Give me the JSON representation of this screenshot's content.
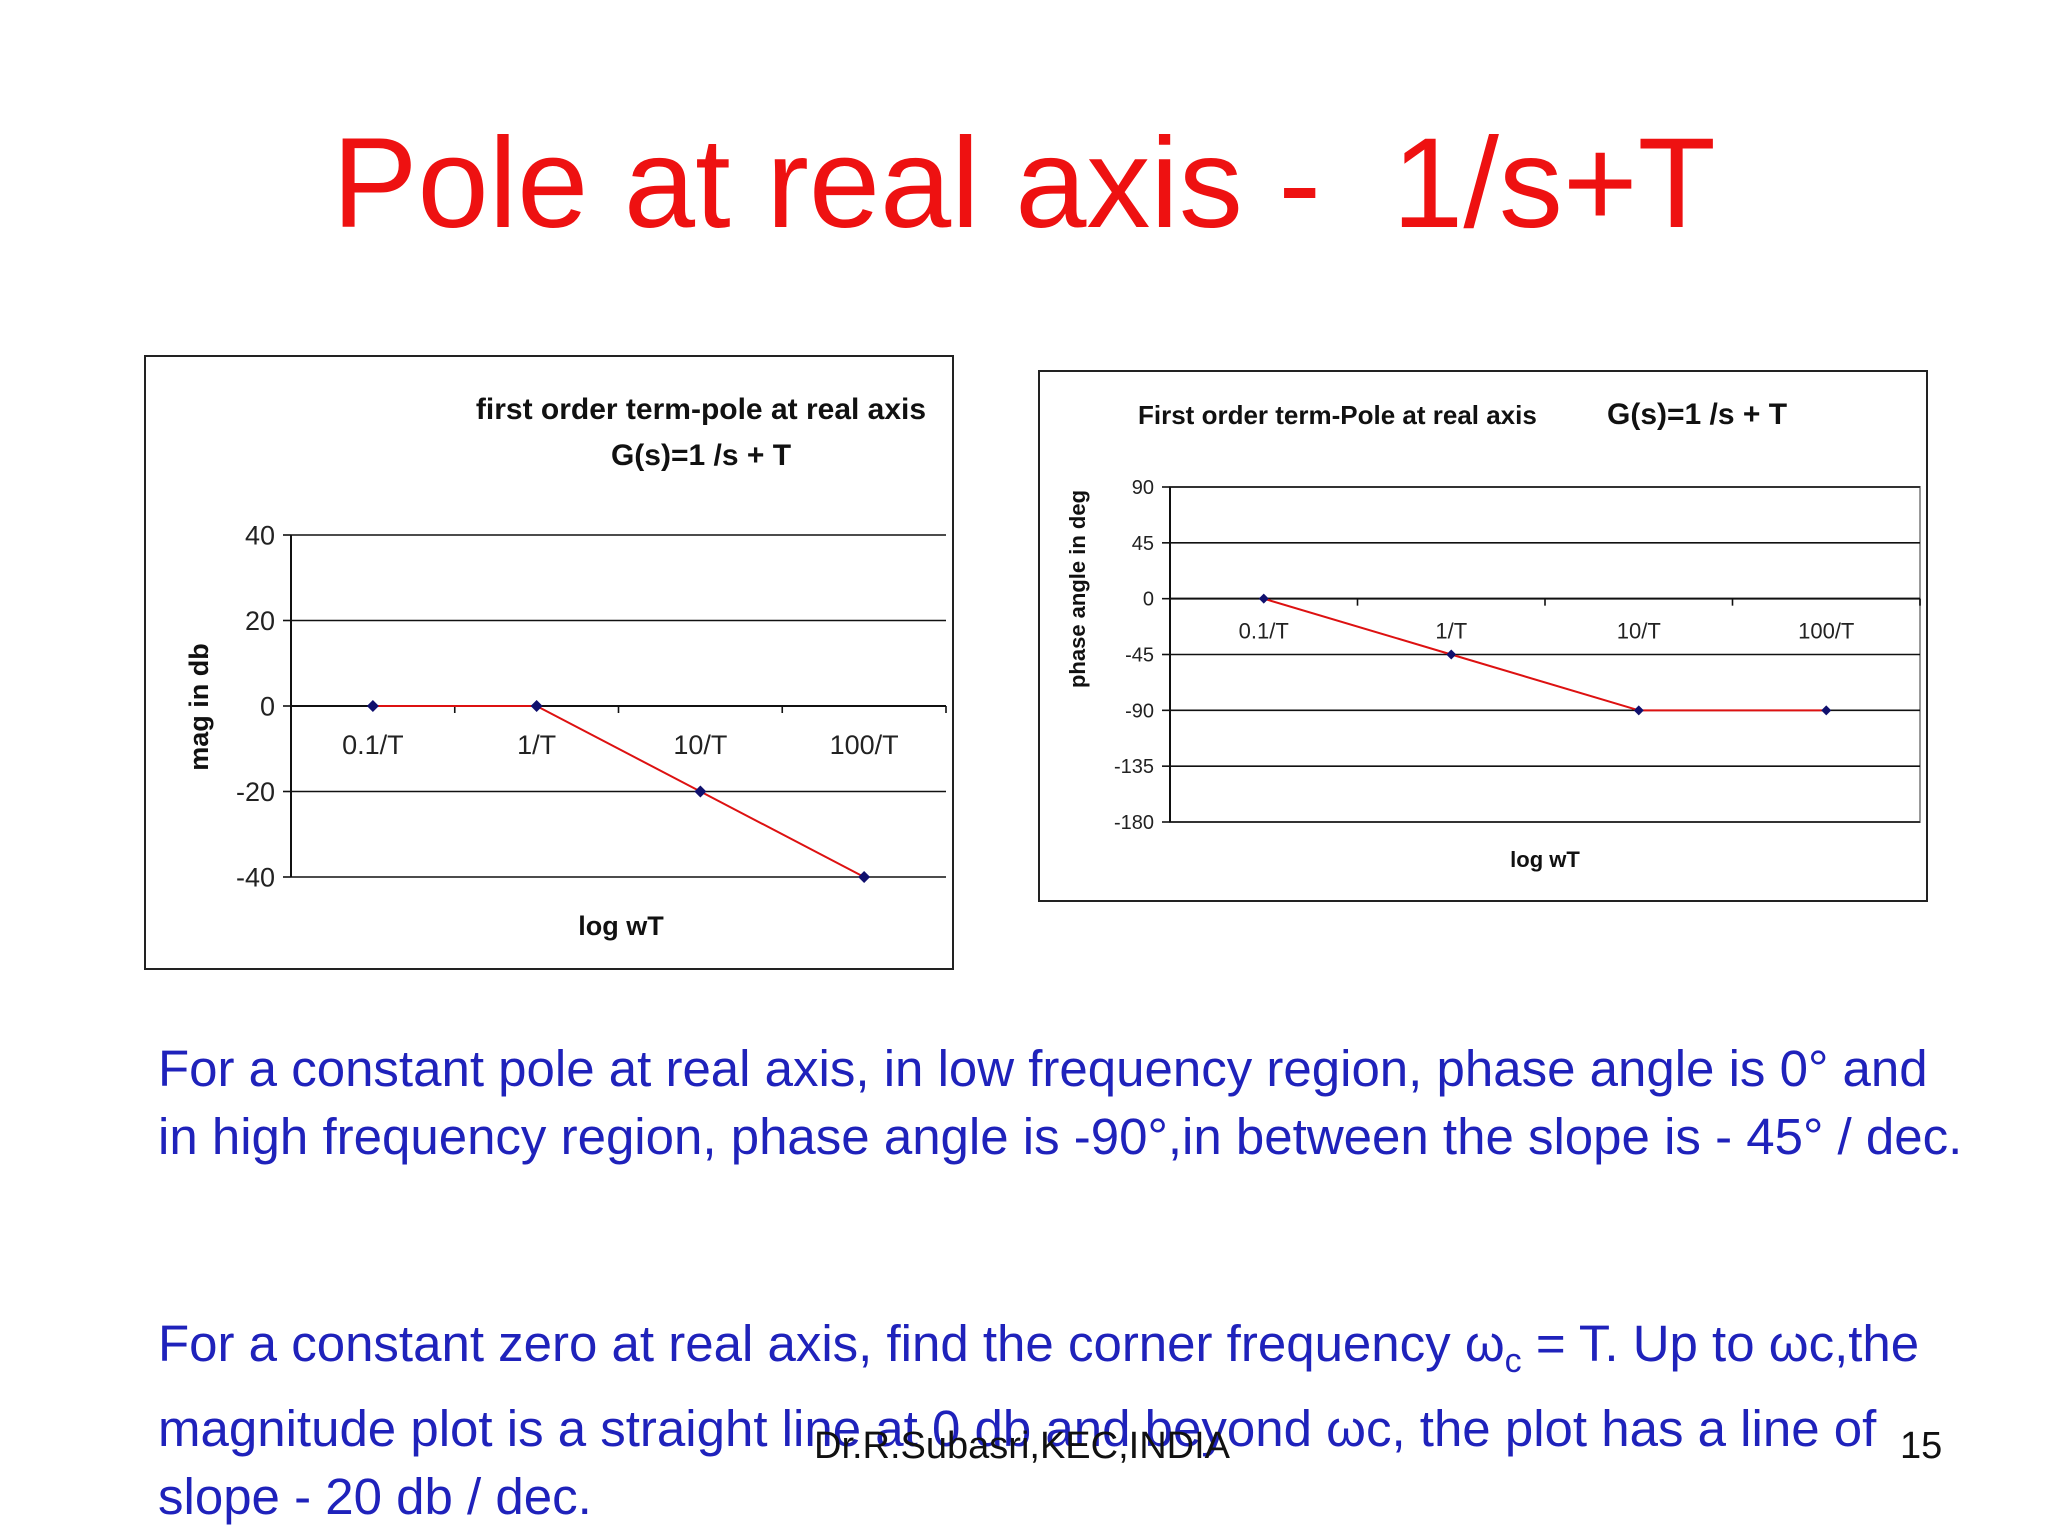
{
  "slide": {
    "title": "Pole at real axis -  1/s+T",
    "paragraph1": "For a constant pole at real axis, in low frequency region, phase angle is 0° and in high frequency region, phase angle is -90°,in between the slope is - 45° / dec.",
    "paragraph2_part1": "For a constant zero at real axis, find the corner frequency ω",
    "paragraph2_sub": "c",
    "paragraph2_part2": " = T. Up to ωc,the magnitude plot is a straight line at 0 db and beyond ωc, the plot has a line of slope  - 20 db / dec.",
    "footer_author": "Dr.R.Subasri,KEC,INDIA",
    "page_number": "15"
  },
  "colors": {
    "title": "#ee1111",
    "body_text": "#1f22bb",
    "series_line": "#dd1111",
    "marker": "#10106e"
  },
  "chart_data": [
    {
      "type": "line",
      "title_line1": "first order term-pole at real axis",
      "title_line2": "G(s)=1 /s + T",
      "xlabel": "log wT",
      "ylabel": "mag in db",
      "categories": [
        "0.1/T",
        "1/T",
        "10/T",
        "100/T"
      ],
      "series": [
        {
          "values": [
            0,
            0,
            -20,
            -40
          ]
        }
      ],
      "ylim": [
        -40,
        40
      ],
      "yticks": [
        40,
        20,
        0,
        -20,
        -40
      ],
      "grid": true,
      "legend": "none"
    },
    {
      "type": "line",
      "title_line1": "First order term-Pole at real axis",
      "title_line2": "G(s)=1 /s + T",
      "xlabel": "log wT",
      "ylabel": "phase angle in deg",
      "categories": [
        "0.1/T",
        "1/T",
        "10/T",
        "100/T"
      ],
      "series": [
        {
          "values": [
            0,
            -45,
            -90,
            -90
          ]
        }
      ],
      "ylim": [
        -180,
        90
      ],
      "yticks": [
        90,
        45,
        0,
        -45,
        -90,
        -135,
        -180
      ],
      "grid": true,
      "legend": "none"
    }
  ]
}
